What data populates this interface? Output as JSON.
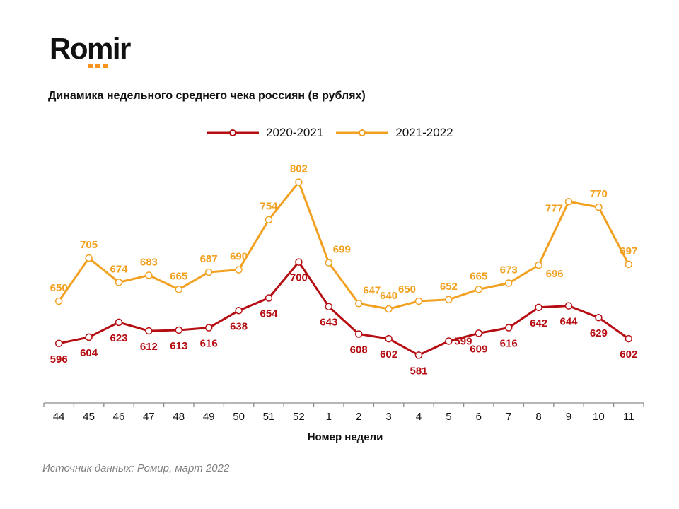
{
  "brand": {
    "name": "Romir",
    "accent": "#f7931e"
  },
  "source": "Источник данных: Ромир, март 2022",
  "chart_data": {
    "type": "line",
    "title": "Динамика недельного среднего чека россиян (в рублях)",
    "xlabel": "Номер недели",
    "ylabel": "",
    "categories": [
      "44",
      "45",
      "46",
      "47",
      "48",
      "49",
      "50",
      "51",
      "52",
      "1",
      "2",
      "3",
      "4",
      "5",
      "6",
      "7",
      "8",
      "9",
      "10",
      "11"
    ],
    "ylim": [
      520,
      835
    ],
    "grid": false,
    "legend_position": "top-center",
    "series": [
      {
        "name": "2020-2021",
        "color": "#b50d12",
        "values": [
          596,
          604,
          623,
          612,
          613,
          616,
          638,
          654,
          700,
          643,
          608,
          602,
          581,
          599,
          609,
          616,
          642,
          644,
          629,
          602
        ],
        "label_pos": [
          "below",
          "below",
          "below",
          "below",
          "below",
          "below",
          "below",
          "below",
          "below",
          "below",
          "below",
          "below",
          "below",
          "right",
          "below",
          "below",
          "below",
          "below",
          "below",
          "below"
        ]
      },
      {
        "name": "2021-2022",
        "color": "#f2a01f",
        "values": [
          650,
          705,
          674,
          683,
          665,
          687,
          690,
          754,
          802,
          699,
          647,
          640,
          650,
          652,
          665,
          673,
          696,
          777,
          770,
          697
        ],
        "label_pos": [
          "above",
          "above",
          "above",
          "above",
          "above",
          "above",
          "above",
          "above",
          "above",
          "above-right",
          "above-right",
          "above",
          "above-left",
          "above",
          "above",
          "above",
          "below-right",
          "left",
          "above",
          "above"
        ]
      }
    ]
  }
}
